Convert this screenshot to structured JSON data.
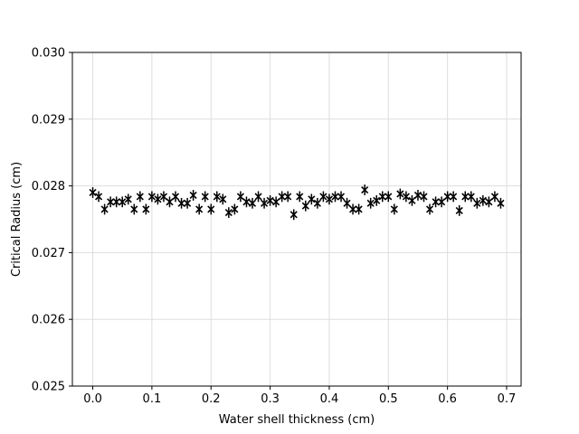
{
  "chart_data": {
    "type": "scatter",
    "title": "",
    "xlabel": "Water shell thickness (cm)",
    "ylabel": "Critical Radius (cm)",
    "xlim": [
      -0.0345,
      0.7245
    ],
    "ylim": [
      0.025,
      0.03
    ],
    "xticks": [
      0.0,
      0.1,
      0.2,
      0.3,
      0.4,
      0.5,
      0.6,
      0.7
    ],
    "xtick_labels": [
      "0.0",
      "0.1",
      "0.2",
      "0.3",
      "0.4",
      "0.5",
      "0.6",
      "0.7"
    ],
    "yticks": [
      0.025,
      0.026,
      0.027,
      0.028,
      0.029,
      0.03
    ],
    "ytick_labels": [
      "0.025",
      "0.026",
      "0.027",
      "0.028",
      "0.029",
      "0.030"
    ],
    "grid": true,
    "marker": "x",
    "error_bars": true,
    "error_half_width": 8e-05,
    "color": "#000000",
    "grid_color": "#dddddd",
    "x": [
      0.0,
      0.01,
      0.02,
      0.03,
      0.04,
      0.05,
      0.06,
      0.07,
      0.08,
      0.09,
      0.1,
      0.11,
      0.12,
      0.13,
      0.14,
      0.15,
      0.16,
      0.17,
      0.18,
      0.19,
      0.2,
      0.21,
      0.22,
      0.23,
      0.24,
      0.25,
      0.26,
      0.27,
      0.28,
      0.29,
      0.3,
      0.31,
      0.32,
      0.33,
      0.34,
      0.35,
      0.36,
      0.37,
      0.38,
      0.39,
      0.4,
      0.41,
      0.42,
      0.43,
      0.44,
      0.45,
      0.46,
      0.47,
      0.48,
      0.49,
      0.5,
      0.51,
      0.52,
      0.53,
      0.54,
      0.55,
      0.56,
      0.57,
      0.58,
      0.59,
      0.6,
      0.61,
      0.62,
      0.63,
      0.64,
      0.65,
      0.66,
      0.67,
      0.68,
      0.69
    ],
    "y": [
      0.0279,
      0.02784,
      0.02765,
      0.02776,
      0.02776,
      0.02776,
      0.0278,
      0.02765,
      0.02784,
      0.02765,
      0.02784,
      0.0278,
      0.02784,
      0.02776,
      0.02784,
      0.02774,
      0.02774,
      0.02786,
      0.02765,
      0.02784,
      0.02765,
      0.02784,
      0.0278,
      0.0276,
      0.02765,
      0.02784,
      0.02776,
      0.02774,
      0.02784,
      0.02774,
      0.02778,
      0.02776,
      0.02784,
      0.02784,
      0.02757,
      0.02784,
      0.0277,
      0.0278,
      0.02774,
      0.02784,
      0.0278,
      0.02784,
      0.02784,
      0.02774,
      0.02765,
      0.02765,
      0.02794,
      0.02774,
      0.02778,
      0.02784,
      0.02784,
      0.02765,
      0.02788,
      0.02784,
      0.02778,
      0.02786,
      0.02784,
      0.02765,
      0.02776,
      0.02776,
      0.02784,
      0.02784,
      0.02763,
      0.02784,
      0.02784,
      0.02774,
      0.02778,
      0.02776,
      0.02784,
      0.02774
    ]
  }
}
